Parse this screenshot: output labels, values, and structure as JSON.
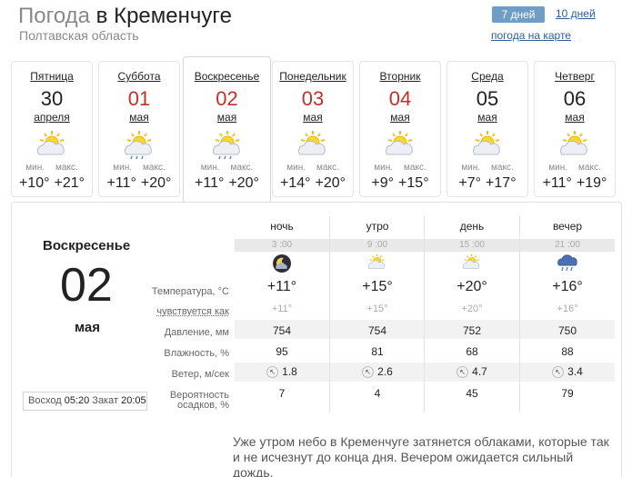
{
  "header": {
    "title_prefix": "Погода",
    "title_city": "в Кременчуге",
    "region": "Полтавская область",
    "btn_7days": "7 дней",
    "link_10days": "10 дней",
    "link_map": "погода на карте"
  },
  "days": [
    {
      "weekday": "Пятница",
      "day": "30",
      "month": "апреля",
      "min_label": "мин.",
      "max_label": "макс.",
      "min": "+10°",
      "max": "+21°",
      "red": false,
      "icon": "sun-cloud-icon"
    },
    {
      "weekday": "Суббота",
      "day": "01",
      "month": "мая",
      "min_label": "мин.",
      "max_label": "макс.",
      "min": "+11°",
      "max": "+20°",
      "red": true,
      "icon": "sun-cloud-rain-icon"
    },
    {
      "weekday": "Воскресенье",
      "day": "02",
      "month": "мая",
      "min_label": "мин.",
      "max_label": "макс.",
      "min": "+11°",
      "max": "+20°",
      "red": true,
      "icon": "sun-cloud-rain-icon",
      "active": true
    },
    {
      "weekday": "Понедельник",
      "day": "03",
      "month": "мая",
      "min_label": "мин.",
      "max_label": "макс.",
      "min": "+14°",
      "max": "+20°",
      "red": true,
      "icon": "sun-cloud-icon"
    },
    {
      "weekday": "Вторник",
      "day": "04",
      "month": "мая",
      "min_label": "мин.",
      "max_label": "макс.",
      "min": "+9°",
      "max": "+15°",
      "red": true,
      "icon": "sun-cloud-icon"
    },
    {
      "weekday": "Среда",
      "day": "05",
      "month": "мая",
      "min_label": "мин.",
      "max_label": "макс.",
      "min": "+7°",
      "max": "+17°",
      "red": false,
      "icon": "sun-cloud-icon"
    },
    {
      "weekday": "Четверг",
      "day": "06",
      "month": "мая",
      "min_label": "мин.",
      "max_label": "макс.",
      "min": "+11°",
      "max": "+19°",
      "red": false,
      "icon": "sun-cloud-icon"
    }
  ],
  "detail": {
    "weekday": "Воскресенье",
    "day": "02",
    "month": "мая",
    "sunrise_label": "Восход",
    "sunrise": "05:20",
    "sunset_label": "Закат",
    "sunset": "20:05",
    "row_labels": {
      "temp": "Температура, °C",
      "feels": "чувствуется как",
      "pressure": "Давление, мм",
      "humidity": "Влажность, %",
      "wind": "Ветер, м/сек",
      "precip_1": "Вероятность",
      "precip_2": "осадков, %"
    },
    "periods": [
      {
        "name": "ночь",
        "time": "3 :00",
        "icon": "moon-cloud-icon",
        "temp": "+11°",
        "feels": "+11°",
        "pressure": "754",
        "humidity": "95",
        "wind": "1.8",
        "precip": "7"
      },
      {
        "name": "утро",
        "time": "9 :00",
        "icon": "sun-cloud-icon",
        "temp": "+15°",
        "feels": "+15°",
        "pressure": "754",
        "humidity": "81",
        "wind": "2.6",
        "precip": "4"
      },
      {
        "name": "день",
        "time": "15 :00",
        "icon": "sun-cloud-icon",
        "temp": "+20°",
        "feels": "+20°",
        "pressure": "752",
        "humidity": "68",
        "wind": "4.7",
        "precip": "45"
      },
      {
        "name": "вечер",
        "time": "21 :00",
        "icon": "cloud-rain-icon",
        "temp": "+16°",
        "feels": "+16°",
        "pressure": "750",
        "humidity": "88",
        "wind": "3.4",
        "precip": "79"
      }
    ],
    "description": "Уже утром небо в Кременчуге затянется облаками, которые так и не исчезнут до конца дня. Вечером ожидается сильный дождь."
  }
}
